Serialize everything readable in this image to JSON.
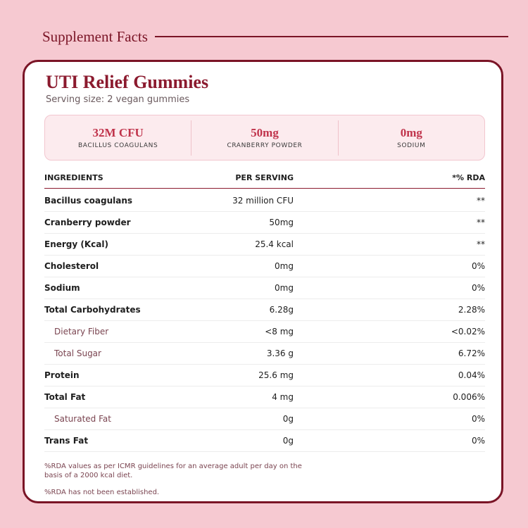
{
  "header": {
    "title": "Supplement Facts"
  },
  "product": {
    "title": "UTI Relief Gummies",
    "serving": "Serving size: 2 vegan gummies"
  },
  "highlights": [
    {
      "value": "32M CFU",
      "label": "BACILLUS COAGULANS"
    },
    {
      "value": "50mg",
      "label": "CRANBERRY POWDER"
    },
    {
      "value": "0mg",
      "label": "SODIUM"
    }
  ],
  "table": {
    "headers": {
      "ingredient": "INGREDIENTS",
      "per_serving": "PER SERVING",
      "rda": "*% RDA"
    },
    "rows": [
      {
        "name": "Bacillus coagulans",
        "per": "32 million CFU",
        "rda": "**"
      },
      {
        "name": "Cranberry powder",
        "per": "50mg",
        "rda": "**"
      },
      {
        "name": "Energy (Kcal)",
        "per": "25.4 kcal",
        "rda": "**"
      },
      {
        "name": "Cholesterol",
        "per": "0mg",
        "rda": "0%"
      },
      {
        "name": "Sodium",
        "per": "0mg",
        "rda": "0%"
      },
      {
        "name": "Total Carbohydrates",
        "per": "6.28g",
        "rda": "2.28%"
      },
      {
        "name": "Dietary Fiber",
        "per": "<8 mg",
        "rda": "<0.02%"
      },
      {
        "name": "Total Sugar",
        "per": "3.36 g",
        "rda": "6.72%"
      },
      {
        "name": "Protein",
        "per": "25.6 mg",
        "rda": "0.04%"
      },
      {
        "name": "Total Fat",
        "per": "4 mg",
        "rda": "0.006%"
      },
      {
        "name": "Saturated Fat",
        "per": "0g",
        "rda": "0%"
      },
      {
        "name": "Trans Fat",
        "per": "0g",
        "rda": "0%"
      }
    ]
  },
  "footnotes": {
    "rda_note": "%RDA values as per ICMR guidelines for an average adult per day on the basis of a 2000 kcal diet.",
    "not_established": "%RDA has not been established."
  },
  "colors": {
    "accent": "#8b1a2e",
    "background": "#f6c9d1",
    "highlight_value": "#c0334b"
  }
}
